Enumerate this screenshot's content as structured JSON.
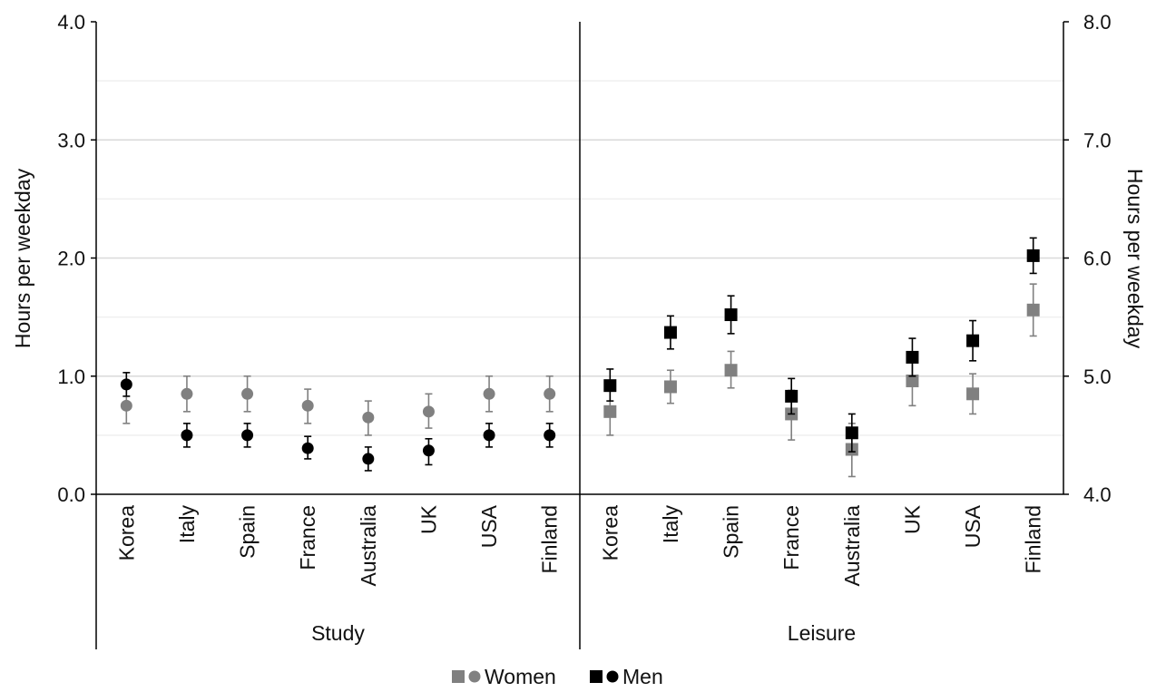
{
  "chart_data": {
    "type": "scatter",
    "panels": [
      {
        "group": "Study",
        "y_axis": "left",
        "ylim": [
          0.0,
          4.0
        ],
        "categories": [
          "Korea",
          "Italy",
          "Spain",
          "France",
          "Australia",
          "UK",
          "USA",
          "Finland"
        ],
        "marker": "circle",
        "series": [
          {
            "name": "Women",
            "color": "#808080",
            "values": [
              0.75,
              0.85,
              0.85,
              0.75,
              0.65,
              0.7,
              0.85,
              0.85
            ],
            "err_low": [
              0.6,
              0.7,
              0.7,
              0.6,
              0.5,
              0.56,
              0.7,
              0.7
            ],
            "err_high": [
              0.9,
              1.0,
              1.0,
              0.89,
              0.79,
              0.85,
              1.0,
              1.0
            ]
          },
          {
            "name": "Men",
            "color": "#000000",
            "values": [
              0.93,
              0.5,
              0.5,
              0.39,
              0.3,
              0.37,
              0.5,
              0.5
            ],
            "err_low": [
              0.83,
              0.4,
              0.4,
              0.3,
              0.2,
              0.25,
              0.4,
              0.4
            ],
            "err_high": [
              1.03,
              0.6,
              0.6,
              0.49,
              0.4,
              0.47,
              0.6,
              0.6
            ]
          }
        ]
      },
      {
        "group": "Leisure",
        "y_axis": "right",
        "ylim": [
          4.0,
          8.0
        ],
        "categories": [
          "Korea",
          "Italy",
          "Spain",
          "France",
          "Australia",
          "UK",
          "USA",
          "Finland"
        ],
        "marker": "square",
        "series": [
          {
            "name": "Women",
            "color": "#808080",
            "values": [
              4.7,
              4.91,
              5.05,
              4.68,
              4.38,
              4.96,
              4.85,
              5.56
            ],
            "err_low": [
              4.5,
              4.77,
              4.9,
              4.46,
              4.15,
              4.75,
              4.68,
              5.34
            ],
            "err_high": [
              4.9,
              5.05,
              5.21,
              4.88,
              4.6,
              5.17,
              5.02,
              5.78
            ]
          },
          {
            "name": "Men",
            "color": "#000000",
            "values": [
              4.92,
              5.37,
              5.52,
              4.83,
              4.52,
              5.16,
              5.3,
              6.02
            ],
            "err_low": [
              4.79,
              5.23,
              5.36,
              4.68,
              4.36,
              5.0,
              5.13,
              5.87
            ],
            "err_high": [
              5.06,
              5.51,
              5.68,
              4.98,
              4.68,
              5.32,
              5.47,
              6.17
            ]
          }
        ]
      }
    ],
    "y_left": {
      "label": "Hours per weekday",
      "ticks": [
        "0.0",
        "1.0",
        "2.0",
        "3.0",
        "4.0"
      ],
      "range": [
        0.0,
        4.0
      ]
    },
    "y_right": {
      "label": "Hours per weekday",
      "ticks": [
        "4.0",
        "5.0",
        "6.0",
        "7.0",
        "8.0"
      ],
      "range": [
        4.0,
        8.0
      ]
    },
    "grid": true,
    "legend": {
      "position": "bottom",
      "entries": [
        {
          "label": "Women",
          "color": "#808080",
          "markers": [
            "square",
            "circle"
          ]
        },
        {
          "label": "Men",
          "color": "#000000",
          "markers": [
            "square",
            "circle"
          ]
        }
      ]
    }
  }
}
